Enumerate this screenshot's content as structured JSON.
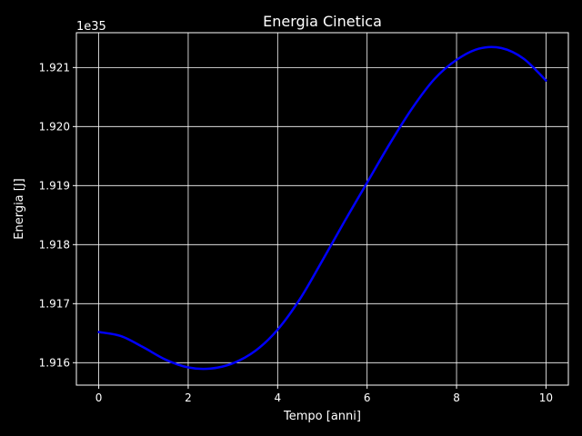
{
  "colors": {
    "background": "#000000",
    "axis": "#ffffff",
    "grid": "#ffffff",
    "line": "#0000ff",
    "text": "#ffffff"
  },
  "chart_data": {
    "type": "line",
    "title": "Energia Cinetica",
    "xlabel": "Tempo [anni]",
    "ylabel": "Energia [J]",
    "offset_label": "1e35",
    "xlim": [
      -0.5,
      10.5
    ],
    "ylim": [
      1.91562,
      1.92159
    ],
    "grid": true,
    "xticks": [
      0,
      2,
      4,
      6,
      8,
      10
    ],
    "xtick_labels": [
      "0",
      "2",
      "4",
      "6",
      "8",
      "10"
    ],
    "yticks": [
      1.916,
      1.917,
      1.918,
      1.919,
      1.92,
      1.921
    ],
    "ytick_labels": [
      "1.916",
      "1.917",
      "1.918",
      "1.919",
      "1.920",
      "1.921"
    ],
    "series": [
      {
        "color": "#0000ff",
        "x": [
          0,
          0.5,
          1,
          1.5,
          2,
          2.5,
          3,
          3.5,
          4,
          4.5,
          5,
          5.5,
          6,
          6.5,
          7,
          7.5,
          8,
          8.5,
          9,
          9.5,
          10
        ],
        "y": [
          1.91652,
          1.91645,
          1.91626,
          1.91605,
          1.91592,
          1.9159,
          1.91599,
          1.9162,
          1.91656,
          1.91708,
          1.91773,
          1.9184,
          1.91905,
          1.9197,
          1.9203,
          1.9208,
          1.92113,
          1.92132,
          1.92133,
          1.92115,
          1.92078
        ]
      }
    ]
  }
}
